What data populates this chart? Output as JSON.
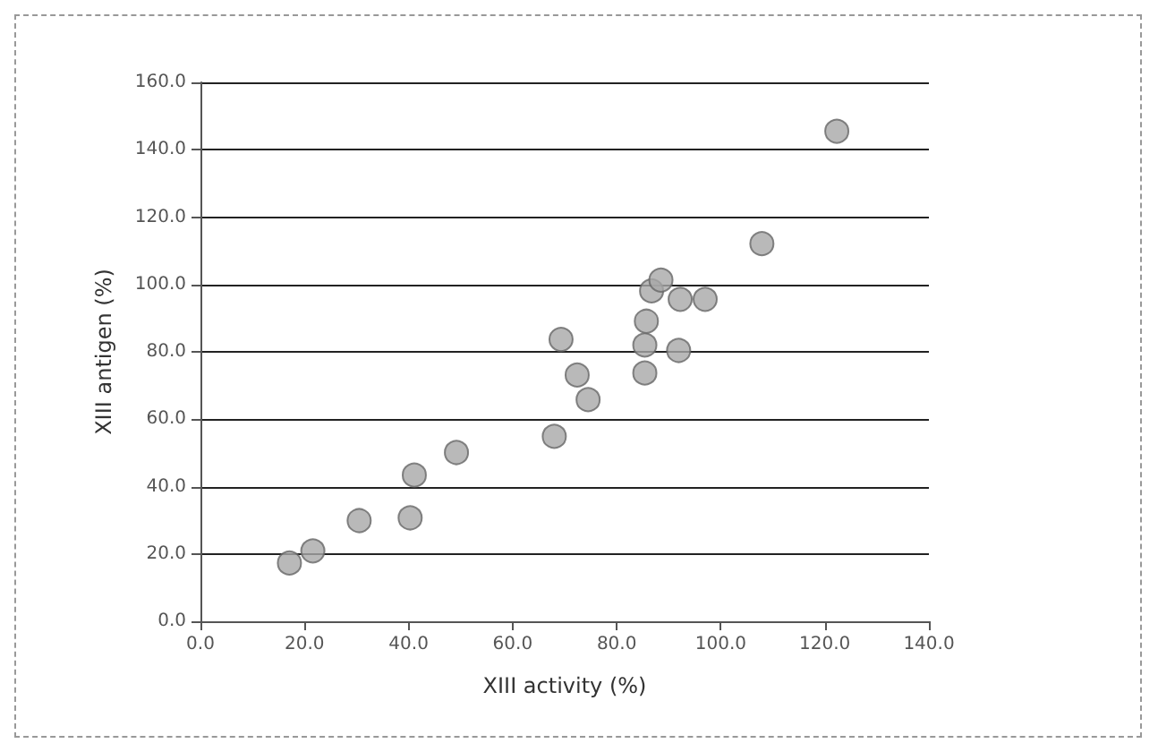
{
  "chart_data": {
    "type": "scatter",
    "xlabel": "XIII activity (%)",
    "ylabel": "XIII antigen (%)",
    "x": [
      17.1,
      21.6,
      30.5,
      40.3,
      41.1,
      49.2,
      68.0,
      69.3,
      72.4,
      74.5,
      85.4,
      85.4,
      85.7,
      86.7,
      88.5,
      91.9,
      92.2,
      97.0,
      107.9,
      122.3
    ],
    "values": [
      17.3,
      20.9,
      29.9,
      30.7,
      43.4,
      50.1,
      54.9,
      83.7,
      73.1,
      65.8,
      73.7,
      82.0,
      89.1,
      98.1,
      101.3,
      80.4,
      95.6,
      95.6,
      112.1,
      145.5
    ],
    "color": "#a8a8a8",
    "marker": "circle",
    "grid": "y",
    "xlim": [
      0,
      140
    ],
    "xticks": [
      {
        "value": 0,
        "label": "0.0"
      },
      {
        "value": 20,
        "label": "20.0"
      },
      {
        "value": 40,
        "label": "40.0"
      },
      {
        "value": 60,
        "label": "60.0"
      },
      {
        "value": 80,
        "label": "80.0"
      },
      {
        "value": 100,
        "label": "100.0"
      },
      {
        "value": 120,
        "label": "120.0"
      },
      {
        "value": 140,
        "label": "140.0"
      }
    ],
    "ylim": [
      0,
      160
    ],
    "yticks": [
      {
        "value": 0,
        "label": "0.0"
      },
      {
        "value": 20,
        "label": "20.0"
      },
      {
        "value": 40,
        "label": "40.0"
      },
      {
        "value": 60,
        "label": "60.0"
      },
      {
        "value": 80,
        "label": "80.0"
      },
      {
        "value": 100,
        "label": "100.0"
      },
      {
        "value": 120,
        "label": "120.0"
      },
      {
        "value": 140,
        "label": "140.0"
      },
      {
        "value": 160,
        "label": "160.0"
      }
    ]
  }
}
